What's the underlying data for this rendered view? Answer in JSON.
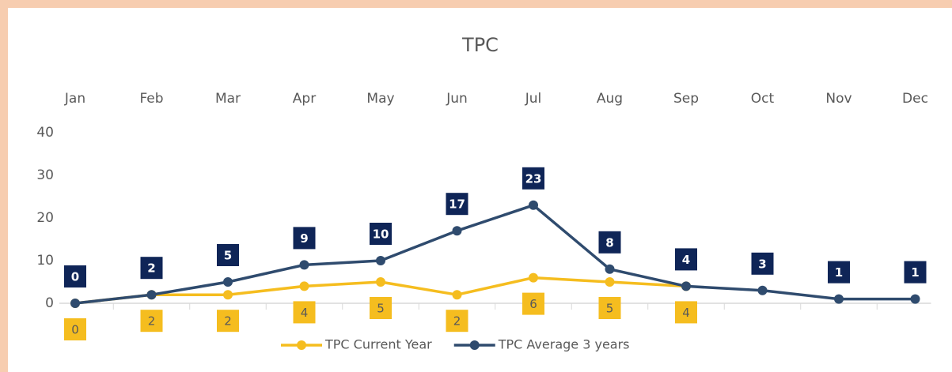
{
  "chart_data": {
    "type": "line",
    "title": "TPC",
    "categories": [
      "Jan",
      "Feb",
      "Mar",
      "Apr",
      "May",
      "Jun",
      "Jul",
      "Aug",
      "Sep",
      "Oct",
      "Nov",
      "Dec"
    ],
    "series": [
      {
        "name": "TPC Current Year",
        "color": "#f5bd1f",
        "values": [
          0,
          2,
          2,
          4,
          5,
          2,
          6,
          5,
          4,
          null,
          null,
          null
        ]
      },
      {
        "name": "TPC Average 3 years",
        "color": "#2f4b6e",
        "label_color": "#0f2557",
        "values": [
          0,
          2,
          5,
          9,
          10,
          17,
          23,
          8,
          4,
          3,
          1,
          1
        ]
      }
    ],
    "ylim": [
      0,
      40
    ],
    "yticks": [
      0,
      10,
      20,
      30,
      40
    ],
    "grid": false,
    "legend": "bottom"
  }
}
